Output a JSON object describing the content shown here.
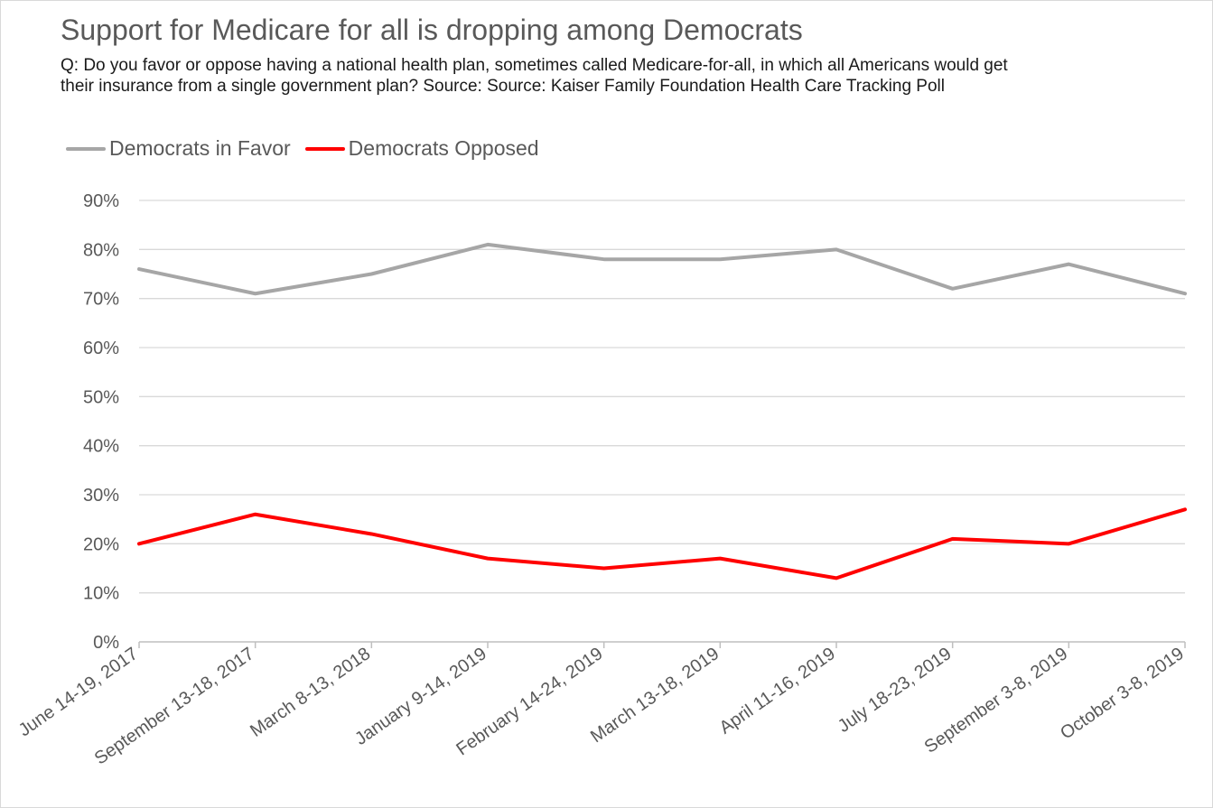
{
  "chart_data": {
    "type": "line",
    "title": "Support for Medicare for all is dropping among Democrats",
    "subtitle": "Q: Do you favor or oppose having a national health plan, sometimes called Medicare-for-all, in which all Americans would get their insurance from a single government plan? Source: Source: Kaiser Family Foundation Health Care Tracking Poll",
    "categories": [
      "June 14-19, 2017",
      "September 13-18, 2017",
      "March 8-13, 2018",
      "January 9-14, 2019",
      "February 14-24, 2019",
      "March 13-18, 2019",
      "April 11-16, 2019",
      "July 18-23, 2019",
      "September 3-8, 2019",
      "October 3-8, 2019"
    ],
    "series": [
      {
        "name": "Democrats in Favor",
        "color": "#a6a6a6",
        "values": [
          76,
          71,
          75,
          81,
          78,
          78,
          80,
          72,
          77,
          71
        ]
      },
      {
        "name": "Democrats Opposed",
        "color": "#ff0000",
        "values": [
          20,
          26,
          22,
          17,
          15,
          17,
          13,
          21,
          20,
          27
        ]
      }
    ],
    "yticks": [
      "0%",
      "10%",
      "20%",
      "30%",
      "40%",
      "50%",
      "60%",
      "70%",
      "80%",
      "90%"
    ],
    "ylim": [
      0,
      90
    ],
    "grid": true,
    "legend_position": "top-left"
  }
}
